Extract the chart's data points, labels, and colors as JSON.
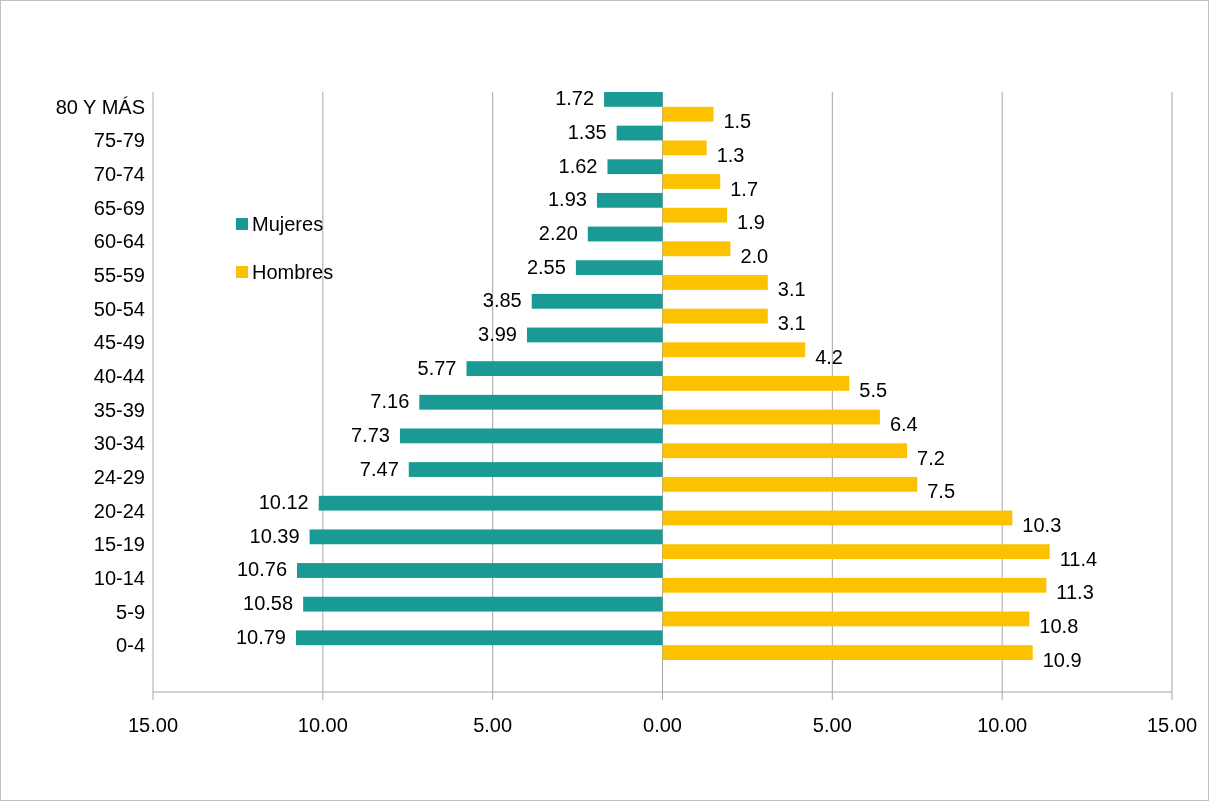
{
  "chart_data": {
    "type": "bar",
    "orientation": "horizontal",
    "categories": [
      "80 Y MÁS",
      "75-79",
      "70-74",
      "65-69",
      "60-64",
      "55-59",
      "50-54",
      "45-49",
      "40-44",
      "35-39",
      "30-34",
      "24-29",
      "20-24",
      "15-19",
      "10-14",
      "5-9",
      "0-4"
    ],
    "series": [
      {
        "name": "Mujeres",
        "color": "#1a9a94",
        "base": [
          -1.72,
          -1.35,
          -1.62,
          -1.93,
          -2.2,
          -2.55,
          -3.85,
          -3.99,
          -5.77,
          -7.16,
          -7.73,
          -7.47,
          -10.12,
          -10.39,
          -10.76,
          -10.58,
          -10.79
        ],
        "values": [
          1.72,
          1.35,
          1.62,
          1.93,
          2.2,
          2.55,
          3.85,
          3.99,
          5.77,
          7.16,
          7.73,
          7.47,
          10.12,
          10.39,
          10.76,
          10.58,
          10.79
        ],
        "value_labels": [
          "1.72",
          "1.35",
          "1.62",
          "1.93",
          "2.20",
          "2.55",
          "3.85",
          "3.99",
          "5.77",
          "7.16",
          "7.73",
          "7.47",
          "10.12",
          "10.39",
          "10.76",
          "10.58",
          "10.79"
        ]
      },
      {
        "name": "Hombres",
        "color": "#fcc200",
        "values": [
          1.5,
          1.3,
          1.7,
          1.9,
          2.0,
          3.1,
          3.1,
          4.2,
          5.5,
          6.4,
          7.2,
          7.5,
          10.3,
          11.4,
          11.3,
          10.8,
          10.9
        ],
        "value_labels": [
          "1.5",
          "1.3",
          "1.7",
          "1.9",
          "2.0",
          "3.1",
          "3.1",
          "4.2",
          "5.5",
          "6.4",
          "7.2",
          "7.5",
          "10.3",
          "11.4",
          "11.3",
          "10.8",
          "10.9"
        ]
      }
    ],
    "xlim": [
      -15,
      15
    ],
    "xticks": [
      {
        "value": -15,
        "label": "15.00"
      },
      {
        "value": -10,
        "label": "10.00"
      },
      {
        "value": -5,
        "label": "5.00"
      },
      {
        "value": 0,
        "label": "0.00"
      },
      {
        "value": 5,
        "label": "5.00"
      },
      {
        "value": 10,
        "label": "10.00"
      },
      {
        "value": 15,
        "label": "15.00"
      }
    ],
    "grid": "x",
    "legend": "left"
  }
}
